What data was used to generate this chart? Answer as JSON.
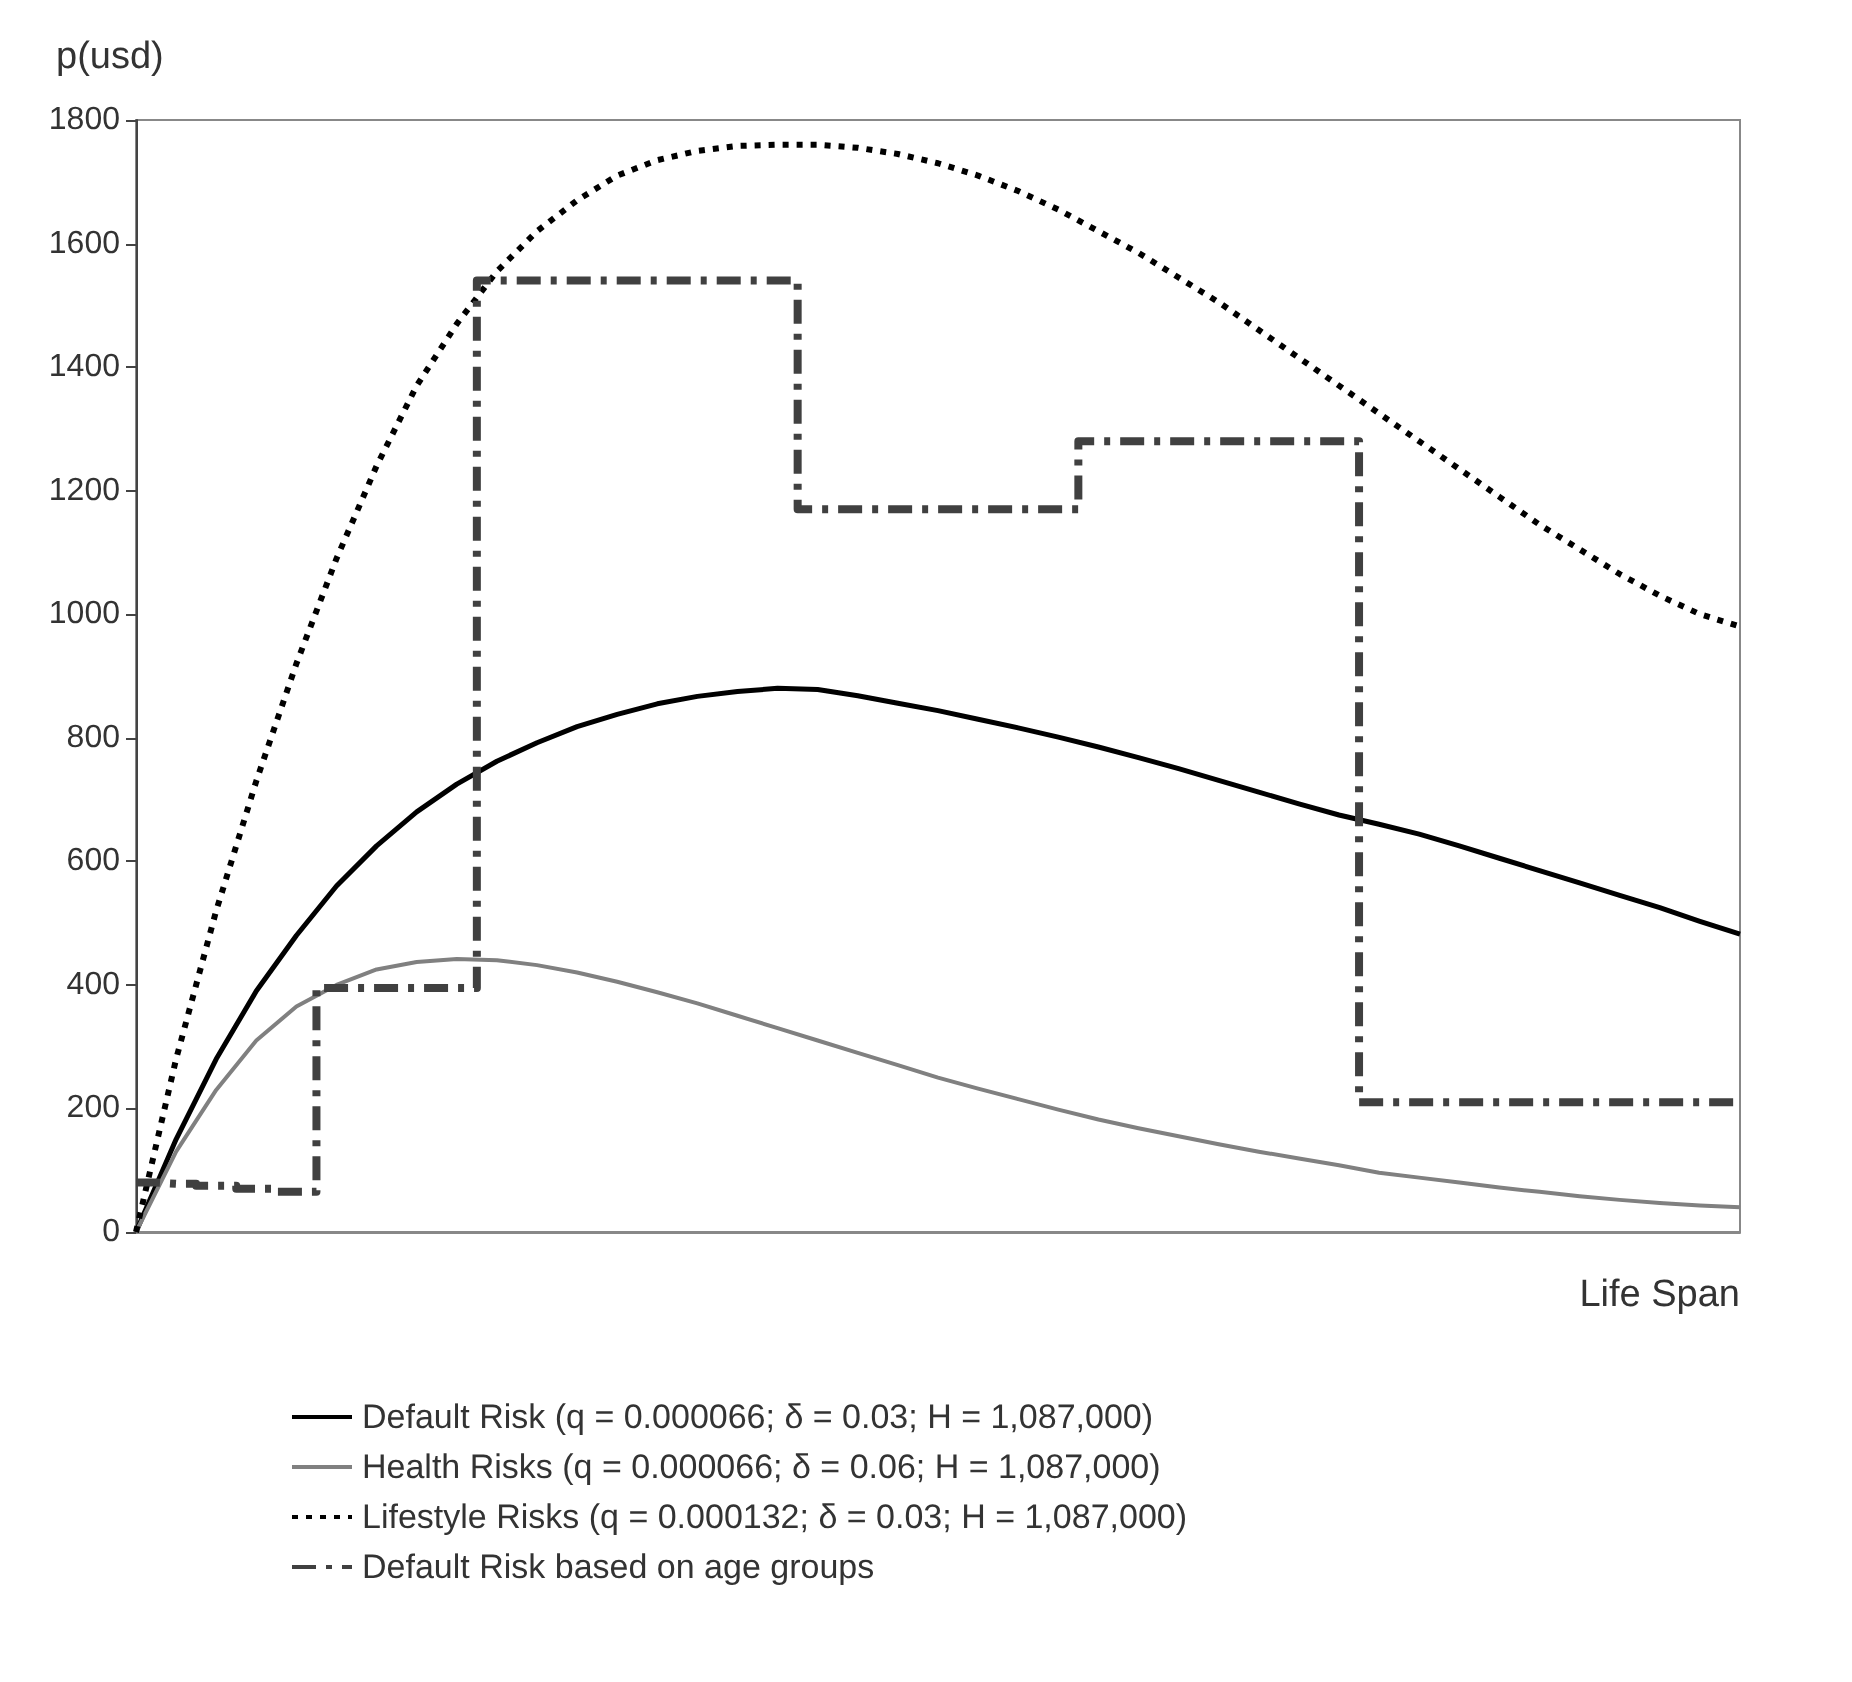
{
  "chart_data": {
    "type": "line",
    "ylabel": "p(usd)",
    "xlabel": "Life Span",
    "categories": [
      null,
      null,
      null,
      null,
      null,
      null,
      null,
      null,
      null,
      null,
      null,
      null,
      null,
      null,
      null,
      null,
      null,
      null,
      null,
      null,
      null,
      null,
      null,
      null,
      null,
      null,
      null,
      null,
      null,
      null,
      null,
      null,
      null,
      null,
      null,
      null,
      null,
      null,
      null,
      null,
      null
    ],
    "ylim": [
      0,
      1800
    ],
    "yticks": [
      0,
      200,
      400,
      600,
      800,
      1000,
      1200,
      1400,
      1600,
      1800
    ],
    "grid": false,
    "legend": "bottom",
    "marker": "none",
    "tick_labels": "y",
    "series": [
      {
        "name": "Default Risk (q = 0.000066; δ = 0.03; H = 1,087,000)",
        "color": "#000000",
        "line_style": "solid",
        "values": [
          0,
          150,
          280,
          390,
          480,
          560,
          625,
          680,
          725,
          762,
          792,
          818,
          838,
          855,
          867,
          875,
          880,
          878,
          868,
          856,
          844,
          830,
          816,
          801,
          785,
          768,
          750,
          731,
          712,
          693,
          675,
          660,
          644,
          625,
          605,
          585,
          565,
          545,
          525,
          503,
          482
        ]
      },
      {
        "name": "Health Risks (q = 0.000066; δ = 0.06; H = 1,087,000)",
        "color": "#808080",
        "line_style": "solid",
        "values": [
          0,
          130,
          230,
          310,
          365,
          400,
          425,
          437,
          442,
          440,
          432,
          420,
          405,
          388,
          370,
          350,
          330,
          310,
          290,
          270,
          250,
          232,
          215,
          198,
          182,
          168,
          155,
          142,
          130,
          119,
          108,
          96,
          88,
          80,
          72,
          65,
          58,
          52,
          47,
          43,
          40
        ]
      },
      {
        "name": "Lifestyle Risks (q = 0.000132; δ = 0.03; H = 1,087,000)",
        "color": "#000000",
        "line_style": "dotted",
        "values": [
          0,
          280,
          520,
          730,
          920,
          1090,
          1240,
          1370,
          1470,
          1555,
          1620,
          1670,
          1710,
          1735,
          1750,
          1758,
          1760,
          1760,
          1755,
          1745,
          1730,
          1710,
          1685,
          1655,
          1620,
          1585,
          1545,
          1505,
          1460,
          1415,
          1370,
          1325,
          1280,
          1235,
          1190,
          1145,
          1105,
          1065,
          1030,
          1000,
          980
        ]
      },
      {
        "name": "Default Risk based on age groups",
        "type": "step",
        "color": "#404040",
        "line_style": "dashed",
        "values": [
          80,
          78,
          75,
          70,
          65,
          395,
          395,
          395,
          395,
          1540,
          1540,
          1540,
          1540,
          1540,
          1540,
          1540,
          1540,
          1170,
          1170,
          1170,
          1170,
          1170,
          1170,
          1170,
          1280,
          1280,
          1280,
          1280,
          1280,
          1280,
          1280,
          210,
          210,
          210,
          210,
          210,
          210,
          210,
          210,
          210,
          210
        ]
      }
    ]
  }
}
